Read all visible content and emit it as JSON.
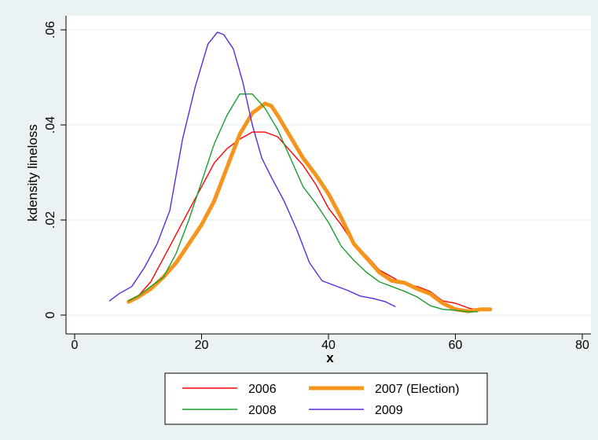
{
  "chart_data": {
    "type": "line",
    "title": "",
    "xlabel": "x",
    "ylabel": "kdensity lineloss",
    "xlim": [
      0,
      80
    ],
    "ylim": [
      0,
      0.06
    ],
    "xticks": [
      0,
      20,
      40,
      60,
      80
    ],
    "xtick_labels": [
      "0",
      "20",
      "40",
      "60",
      "80"
    ],
    "yticks": [
      0,
      0.02,
      0.04,
      0.06
    ],
    "ytick_labels": [
      "0",
      ".02",
      ".04",
      ".06"
    ],
    "grid": "horizontal",
    "legend_position": "bottom",
    "series": [
      {
        "name": "2006",
        "color": "#ff0000",
        "width": "thin",
        "points": [
          [
            8.5,
            0.0028
          ],
          [
            10,
            0.004
          ],
          [
            12,
            0.007
          ],
          [
            14,
            0.012
          ],
          [
            16,
            0.017
          ],
          [
            18,
            0.022
          ],
          [
            20,
            0.027
          ],
          [
            22,
            0.032
          ],
          [
            24,
            0.035
          ],
          [
            26,
            0.037
          ],
          [
            28,
            0.0385
          ],
          [
            30,
            0.0385
          ],
          [
            32,
            0.0375
          ],
          [
            34,
            0.0345
          ],
          [
            36,
            0.0315
          ],
          [
            38,
            0.0275
          ],
          [
            40,
            0.0225
          ],
          [
            42,
            0.019
          ],
          [
            44,
            0.015
          ],
          [
            46,
            0.0125
          ],
          [
            48,
            0.0095
          ],
          [
            50,
            0.008
          ],
          [
            52,
            0.0065
          ],
          [
            54,
            0.006
          ],
          [
            56,
            0.005
          ],
          [
            58,
            0.003
          ],
          [
            60,
            0.0025
          ],
          [
            62,
            0.0015
          ],
          [
            63,
            0.0012
          ]
        ]
      },
      {
        "name": "2007 (Election)",
        "color": "#f7941d",
        "width": "thick",
        "points": [
          [
            8.5,
            0.0028
          ],
          [
            10,
            0.0038
          ],
          [
            12,
            0.0055
          ],
          [
            14,
            0.008
          ],
          [
            16,
            0.011
          ],
          [
            18,
            0.015
          ],
          [
            20,
            0.019
          ],
          [
            22,
            0.024
          ],
          [
            24,
            0.031
          ],
          [
            26,
            0.038
          ],
          [
            28,
            0.0425
          ],
          [
            30,
            0.0445
          ],
          [
            31,
            0.044
          ],
          [
            32,
            0.042
          ],
          [
            34,
            0.0375
          ],
          [
            36,
            0.033
          ],
          [
            38,
            0.0295
          ],
          [
            40,
            0.0255
          ],
          [
            42,
            0.0205
          ],
          [
            44,
            0.015
          ],
          [
            46,
            0.012
          ],
          [
            48,
            0.009
          ],
          [
            50,
            0.0072
          ],
          [
            52,
            0.0068
          ],
          [
            54,
            0.0055
          ],
          [
            56,
            0.0045
          ],
          [
            58,
            0.0025
          ],
          [
            60,
            0.0012
          ],
          [
            62,
            0.0008
          ],
          [
            64,
            0.0012
          ],
          [
            65.5,
            0.0012
          ]
        ]
      },
      {
        "name": "2008",
        "color": "#1a9e2c",
        "width": "thin",
        "points": [
          [
            8.5,
            0.003
          ],
          [
            10,
            0.004
          ],
          [
            12,
            0.006
          ],
          [
            14,
            0.008
          ],
          [
            16,
            0.013
          ],
          [
            18,
            0.02
          ],
          [
            20,
            0.028
          ],
          [
            22,
            0.036
          ],
          [
            24,
            0.042
          ],
          [
            26,
            0.0465
          ],
          [
            28,
            0.0465
          ],
          [
            30,
            0.0435
          ],
          [
            32,
            0.039
          ],
          [
            34,
            0.033
          ],
          [
            36,
            0.027
          ],
          [
            38,
            0.0235
          ],
          [
            40,
            0.0195
          ],
          [
            42,
            0.0145
          ],
          [
            44,
            0.0115
          ],
          [
            46,
            0.009
          ],
          [
            48,
            0.007
          ],
          [
            50,
            0.006
          ],
          [
            52,
            0.005
          ],
          [
            54,
            0.0038
          ],
          [
            56,
            0.002
          ],
          [
            58,
            0.0012
          ],
          [
            60,
            0.001
          ],
          [
            62,
            0.0007
          ],
          [
            63.5,
            0.0007
          ]
        ]
      },
      {
        "name": "2009",
        "color": "#5a2be0",
        "width": "thin",
        "points": [
          [
            5.5,
            0.003
          ],
          [
            7,
            0.0045
          ],
          [
            9,
            0.006
          ],
          [
            11,
            0.01
          ],
          [
            13,
            0.015
          ],
          [
            15,
            0.022
          ],
          [
            17,
            0.037
          ],
          [
            19,
            0.048
          ],
          [
            21,
            0.057
          ],
          [
            22.5,
            0.0595
          ],
          [
            23.5,
            0.059
          ],
          [
            25,
            0.056
          ],
          [
            26.5,
            0.049
          ],
          [
            28,
            0.04
          ],
          [
            29.5,
            0.033
          ],
          [
            31,
            0.029
          ],
          [
            33,
            0.024
          ],
          [
            35,
            0.018
          ],
          [
            37,
            0.011
          ],
          [
            39,
            0.0072
          ],
          [
            41,
            0.0062
          ],
          [
            43,
            0.0052
          ],
          [
            45,
            0.004
          ],
          [
            47,
            0.0035
          ],
          [
            49,
            0.0028
          ],
          [
            50.5,
            0.0018
          ]
        ]
      }
    ]
  }
}
